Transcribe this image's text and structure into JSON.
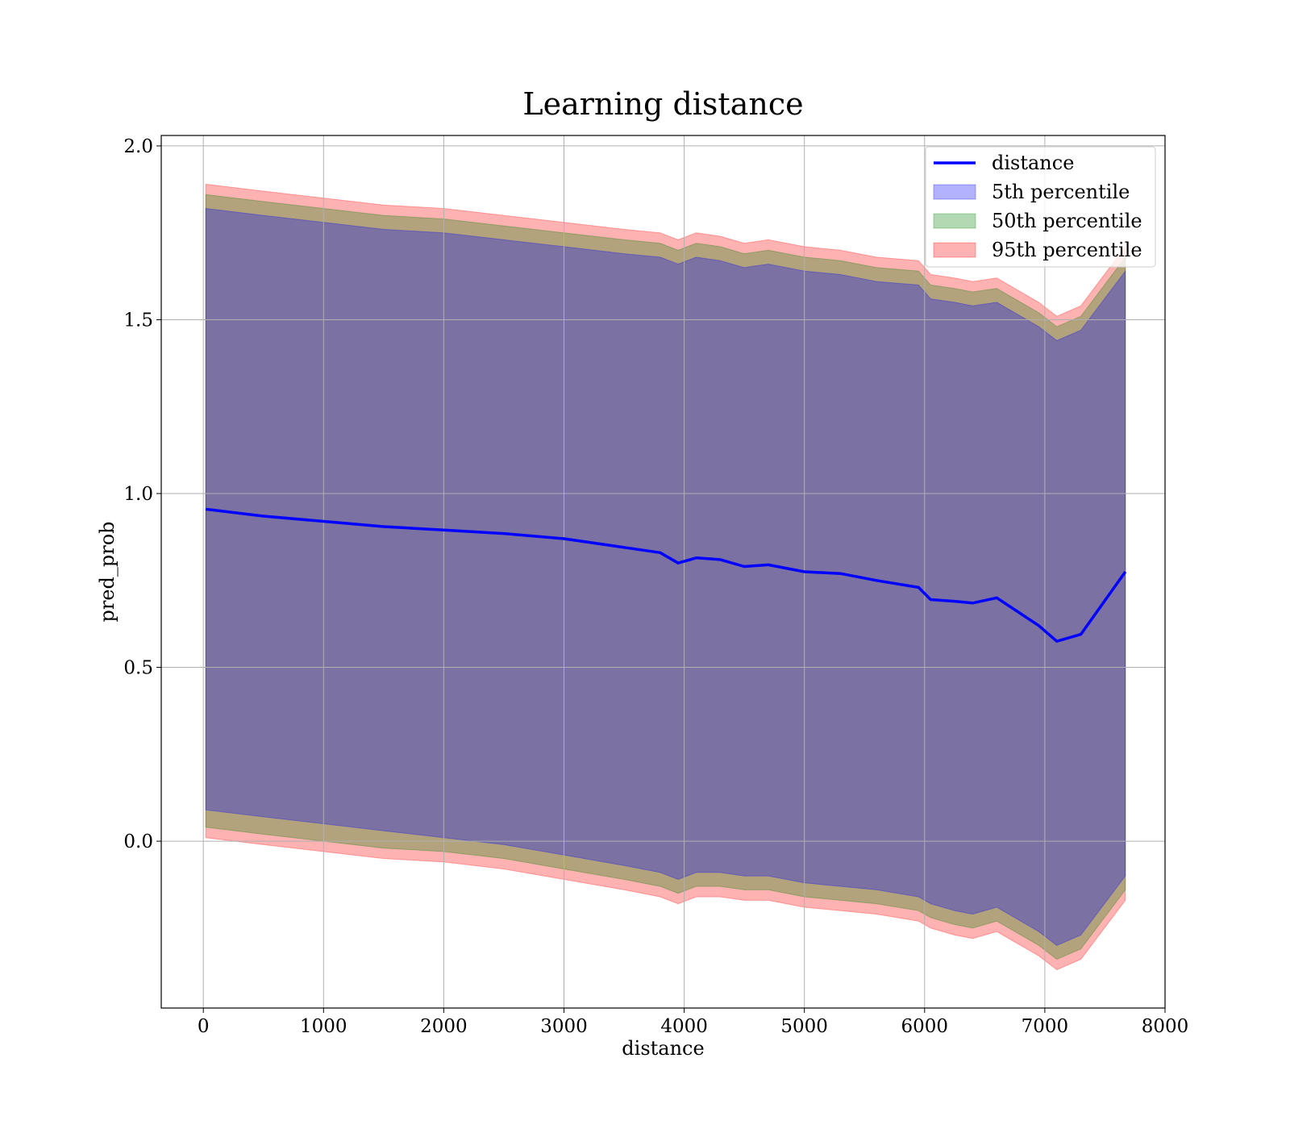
{
  "chart_data": {
    "type": "line",
    "title": "Learning distance",
    "xlabel": "distance",
    "ylabel": "pred_prob",
    "xlim": [
      -350,
      8000
    ],
    "ylim": [
      -0.48,
      2.03
    ],
    "xticks": [
      0,
      1000,
      2000,
      3000,
      4000,
      5000,
      6000,
      7000,
      8000
    ],
    "xtick_labels": [
      "0",
      "1000",
      "2000",
      "3000",
      "4000",
      "5000",
      "6000",
      "7000",
      "8000"
    ],
    "yticks": [
      0.0,
      0.5,
      1.0,
      1.5,
      2.0
    ],
    "ytick_labels": [
      "0.0",
      "0.5",
      "1.0",
      "1.5",
      "2.0"
    ],
    "grid": true,
    "legend_position": "top-right",
    "x": [
      20,
      500,
      1000,
      1500,
      2000,
      2500,
      3000,
      3500,
      3800,
      3950,
      4100,
      4300,
      4500,
      4700,
      5000,
      5300,
      5600,
      5950,
      6050,
      6250,
      6400,
      6600,
      6950,
      7100,
      7300,
      7670
    ],
    "series": [
      {
        "name": "distance",
        "kind": "line",
        "color": "#0000ff",
        "values": [
          0.955,
          0.935,
          0.92,
          0.905,
          0.895,
          0.885,
          0.87,
          0.845,
          0.83,
          0.8,
          0.815,
          0.81,
          0.79,
          0.795,
          0.775,
          0.77,
          0.75,
          0.73,
          0.695,
          0.69,
          0.685,
          0.7,
          0.62,
          0.575,
          0.595,
          0.775
        ]
      },
      {
        "name": "5th percentile",
        "kind": "band",
        "color": "#0000ff",
        "lower": [
          0.09,
          0.07,
          0.05,
          0.03,
          0.01,
          -0.01,
          -0.04,
          -0.07,
          -0.09,
          -0.11,
          -0.09,
          -0.09,
          -0.1,
          -0.1,
          -0.12,
          -0.13,
          -0.14,
          -0.16,
          -0.18,
          -0.2,
          -0.21,
          -0.19,
          -0.26,
          -0.3,
          -0.27,
          -0.1
        ],
        "upper": [
          1.82,
          1.8,
          1.78,
          1.76,
          1.75,
          1.73,
          1.71,
          1.69,
          1.68,
          1.66,
          1.68,
          1.67,
          1.65,
          1.66,
          1.64,
          1.63,
          1.61,
          1.6,
          1.56,
          1.55,
          1.54,
          1.55,
          1.48,
          1.44,
          1.47,
          1.64
        ]
      },
      {
        "name": "50th percentile",
        "kind": "band",
        "color": "#008000",
        "lower": [
          0.04,
          0.02,
          0.0,
          -0.02,
          -0.03,
          -0.05,
          -0.08,
          -0.11,
          -0.13,
          -0.15,
          -0.13,
          -0.13,
          -0.14,
          -0.14,
          -0.16,
          -0.17,
          -0.18,
          -0.2,
          -0.22,
          -0.24,
          -0.25,
          -0.23,
          -0.3,
          -0.34,
          -0.31,
          -0.14
        ],
        "upper": [
          1.86,
          1.84,
          1.82,
          1.8,
          1.79,
          1.77,
          1.75,
          1.73,
          1.72,
          1.7,
          1.72,
          1.71,
          1.69,
          1.7,
          1.68,
          1.67,
          1.65,
          1.64,
          1.6,
          1.59,
          1.58,
          1.59,
          1.52,
          1.48,
          1.51,
          1.68
        ]
      },
      {
        "name": "95th percentile",
        "kind": "band",
        "color": "#ff0000",
        "lower": [
          0.01,
          -0.01,
          -0.03,
          -0.05,
          -0.06,
          -0.08,
          -0.11,
          -0.14,
          -0.16,
          -0.18,
          -0.16,
          -0.16,
          -0.17,
          -0.17,
          -0.19,
          -0.2,
          -0.21,
          -0.23,
          -0.25,
          -0.27,
          -0.28,
          -0.26,
          -0.33,
          -0.37,
          -0.34,
          -0.17
        ],
        "upper": [
          1.89,
          1.87,
          1.85,
          1.83,
          1.82,
          1.8,
          1.78,
          1.76,
          1.75,
          1.73,
          1.75,
          1.74,
          1.72,
          1.73,
          1.71,
          1.7,
          1.68,
          1.67,
          1.63,
          1.62,
          1.61,
          1.62,
          1.55,
          1.51,
          1.54,
          1.71
        ]
      }
    ]
  }
}
